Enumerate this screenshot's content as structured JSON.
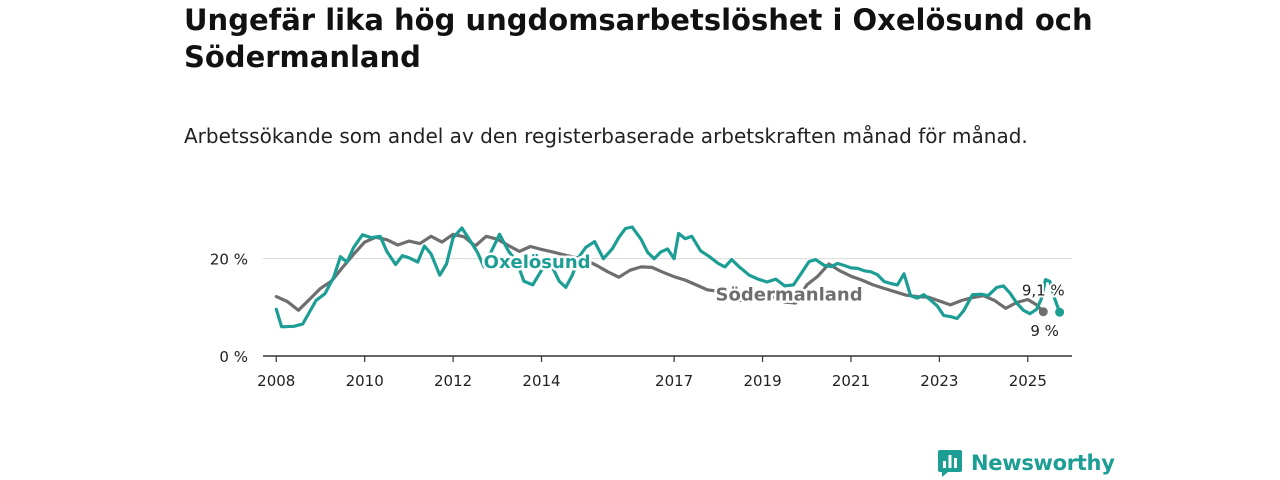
{
  "header": {
    "title": "Ungefär lika hög ungdomsarbetslöshet i Oxelösund och Södermanland",
    "subtitle": "Arbetssökande som andel av den registerbaserade arbetskraften månad för månad."
  },
  "brand": {
    "name": "Newsworthy",
    "icon": "bar-chart-logo-icon",
    "color": "#1d9e95"
  },
  "chart_data": {
    "type": "line",
    "title": "Ungefär lika hög ungdomsarbetslöshet i Oxelösund och Södermanland",
    "subtitle": "Arbetssökande som andel av den registerbaserade arbetskraften månad för månad.",
    "xlabel": "",
    "ylabel": "",
    "xlim": [
      2007.7,
      2026.0
    ],
    "ylim": [
      0,
      30
    ],
    "grid": "horizontal",
    "y_ticks": [
      {
        "value": 0,
        "label": "0 %"
      },
      {
        "value": 20,
        "label": "20 %"
      }
    ],
    "x_ticks": [
      {
        "value": 2008,
        "label": "2008"
      },
      {
        "value": 2010,
        "label": "2010"
      },
      {
        "value": 2012,
        "label": "2012"
      },
      {
        "value": 2014,
        "label": "2014"
      },
      {
        "value": 2017,
        "label": "2017"
      },
      {
        "value": 2019,
        "label": "2019"
      },
      {
        "value": 2021,
        "label": "2021"
      },
      {
        "value": 2023,
        "label": "2023"
      },
      {
        "value": 2025,
        "label": "2025"
      }
    ],
    "series": [
      {
        "name": "Södermanland",
        "color": "#6e6e70",
        "end_label": "9,1 %",
        "points": [
          [
            2008.0,
            12.2
          ],
          [
            2008.25,
            11.2
          ],
          [
            2008.5,
            9.4
          ],
          [
            2008.75,
            11.6
          ],
          [
            2009.0,
            13.9
          ],
          [
            2009.25,
            15.4
          ],
          [
            2009.5,
            18.2
          ],
          [
            2009.75,
            20.9
          ],
          [
            2010.0,
            23.4
          ],
          [
            2010.25,
            24.4
          ],
          [
            2010.5,
            23.9
          ],
          [
            2010.75,
            22.8
          ],
          [
            2011.0,
            23.6
          ],
          [
            2011.25,
            23.1
          ],
          [
            2011.5,
            24.6
          ],
          [
            2011.75,
            23.4
          ],
          [
            2012.0,
            25.0
          ],
          [
            2012.25,
            24.5
          ],
          [
            2012.5,
            22.6
          ],
          [
            2012.75,
            24.6
          ],
          [
            2013.0,
            24.0
          ],
          [
            2013.25,
            22.7
          ],
          [
            2013.5,
            21.5
          ],
          [
            2013.75,
            22.5
          ],
          [
            2014.0,
            21.9
          ],
          [
            2014.25,
            21.4
          ],
          [
            2014.5,
            20.8
          ],
          [
            2014.75,
            20.3
          ],
          [
            2015.0,
            19.7
          ],
          [
            2015.25,
            18.6
          ],
          [
            2015.5,
            17.3
          ],
          [
            2015.75,
            16.2
          ],
          [
            2016.0,
            17.6
          ],
          [
            2016.25,
            18.3
          ],
          [
            2016.5,
            18.2
          ],
          [
            2016.75,
            17.2
          ],
          [
            2017.0,
            16.3
          ],
          [
            2017.25,
            15.6
          ],
          [
            2017.5,
            14.6
          ],
          [
            2017.75,
            13.6
          ],
          [
            2018.0,
            13.3
          ],
          [
            2018.25,
            12.9
          ],
          [
            2018.5,
            11.4
          ],
          [
            2018.75,
            12.3
          ],
          [
            2019.0,
            11.9
          ],
          [
            2019.25,
            12.1
          ],
          [
            2019.5,
            11.1
          ],
          [
            2019.75,
            10.9
          ],
          [
            2020.0,
            14.6
          ],
          [
            2020.25,
            16.4
          ],
          [
            2020.5,
            18.9
          ],
          [
            2020.75,
            17.5
          ],
          [
            2021.0,
            16.4
          ],
          [
            2021.25,
            15.6
          ],
          [
            2021.5,
            14.6
          ],
          [
            2021.75,
            13.9
          ],
          [
            2022.0,
            13.2
          ],
          [
            2022.25,
            12.5
          ],
          [
            2022.5,
            12.2
          ],
          [
            2022.75,
            12.1
          ],
          [
            2023.0,
            11.3
          ],
          [
            2023.25,
            10.5
          ],
          [
            2023.5,
            11.4
          ],
          [
            2023.75,
            12.0
          ],
          [
            2024.0,
            12.4
          ],
          [
            2024.25,
            11.4
          ],
          [
            2024.5,
            9.8
          ],
          [
            2024.75,
            11.0
          ],
          [
            2025.0,
            11.6
          ],
          [
            2025.2,
            10.5
          ],
          [
            2025.35,
            9.1
          ]
        ]
      },
      {
        "name": "Oxelösund",
        "color": "#1d9e95",
        "end_label": "9 %",
        "points": [
          [
            2008.0,
            9.6
          ],
          [
            2008.12,
            6.0
          ],
          [
            2008.4,
            6.1
          ],
          [
            2008.6,
            6.6
          ],
          [
            2008.9,
            11.4
          ],
          [
            2009.1,
            12.8
          ],
          [
            2009.3,
            16.2
          ],
          [
            2009.45,
            20.4
          ],
          [
            2009.6,
            19.3
          ],
          [
            2009.75,
            22.3
          ],
          [
            2009.95,
            24.9
          ],
          [
            2010.15,
            24.3
          ],
          [
            2010.35,
            24.6
          ],
          [
            2010.5,
            21.5
          ],
          [
            2010.7,
            18.8
          ],
          [
            2010.85,
            20.6
          ],
          [
            2011.0,
            20.2
          ],
          [
            2011.2,
            19.3
          ],
          [
            2011.35,
            22.6
          ],
          [
            2011.5,
            21.0
          ],
          [
            2011.7,
            16.6
          ],
          [
            2011.85,
            18.9
          ],
          [
            2012.0,
            24.3
          ],
          [
            2012.2,
            26.3
          ],
          [
            2012.35,
            24.2
          ],
          [
            2012.55,
            21.3
          ],
          [
            2012.7,
            18.3
          ],
          [
            2012.85,
            21.2
          ],
          [
            2013.05,
            25.0
          ],
          [
            2013.25,
            21.6
          ],
          [
            2013.45,
            19.2
          ],
          [
            2013.6,
            15.4
          ],
          [
            2013.8,
            14.6
          ],
          [
            2014.0,
            17.6
          ],
          [
            2014.2,
            19.1
          ],
          [
            2014.4,
            15.4
          ],
          [
            2014.55,
            14.1
          ],
          [
            2014.7,
            16.7
          ],
          [
            2014.85,
            20.4
          ],
          [
            2015.0,
            22.3
          ],
          [
            2015.2,
            23.5
          ],
          [
            2015.4,
            20.0
          ],
          [
            2015.6,
            22.0
          ],
          [
            2015.75,
            24.4
          ],
          [
            2015.9,
            26.2
          ],
          [
            2016.05,
            26.5
          ],
          [
            2016.25,
            24.0
          ],
          [
            2016.4,
            21.3
          ],
          [
            2016.55,
            20.0
          ],
          [
            2016.7,
            21.4
          ],
          [
            2016.85,
            22.0
          ],
          [
            2017.0,
            20.0
          ],
          [
            2017.1,
            25.2
          ],
          [
            2017.25,
            24.1
          ],
          [
            2017.4,
            24.6
          ],
          [
            2017.6,
            21.6
          ],
          [
            2017.8,
            20.4
          ],
          [
            2018.0,
            19.0
          ],
          [
            2018.15,
            18.3
          ],
          [
            2018.3,
            19.8
          ],
          [
            2018.5,
            18.1
          ],
          [
            2018.7,
            16.6
          ],
          [
            2018.9,
            15.8
          ],
          [
            2019.1,
            15.2
          ],
          [
            2019.3,
            15.8
          ],
          [
            2019.5,
            14.4
          ],
          [
            2019.7,
            14.6
          ],
          [
            2019.9,
            17.3
          ],
          [
            2020.05,
            19.4
          ],
          [
            2020.2,
            19.8
          ],
          [
            2020.4,
            18.6
          ],
          [
            2020.55,
            18.4
          ],
          [
            2020.7,
            19.0
          ],
          [
            2020.85,
            18.6
          ],
          [
            2021.0,
            18.1
          ],
          [
            2021.15,
            18.0
          ],
          [
            2021.3,
            17.5
          ],
          [
            2021.45,
            17.3
          ],
          [
            2021.6,
            16.7
          ],
          [
            2021.75,
            15.3
          ],
          [
            2021.9,
            14.9
          ],
          [
            2022.05,
            14.6
          ],
          [
            2022.2,
            16.9
          ],
          [
            2022.35,
            12.4
          ],
          [
            2022.5,
            11.9
          ],
          [
            2022.65,
            12.6
          ],
          [
            2022.8,
            11.5
          ],
          [
            2022.95,
            10.3
          ],
          [
            2023.1,
            8.3
          ],
          [
            2023.25,
            8.1
          ],
          [
            2023.4,
            7.7
          ],
          [
            2023.55,
            9.3
          ],
          [
            2023.75,
            12.6
          ],
          [
            2023.95,
            12.7
          ],
          [
            2024.1,
            12.4
          ],
          [
            2024.3,
            14.1
          ],
          [
            2024.45,
            14.4
          ],
          [
            2024.6,
            12.9
          ],
          [
            2024.75,
            10.9
          ],
          [
            2024.9,
            9.4
          ],
          [
            2025.05,
            8.7
          ],
          [
            2025.2,
            9.6
          ],
          [
            2025.3,
            11.6
          ],
          [
            2025.4,
            15.7
          ],
          [
            2025.5,
            15.3
          ],
          [
            2025.6,
            12.0
          ],
          [
            2025.72,
            9.0
          ]
        ]
      }
    ],
    "annotations": [
      {
        "text": "Oxelösund",
        "series": "Oxelösund",
        "x": 2013.9,
        "y": 18.1,
        "anchor": "middle"
      },
      {
        "text": "Södermanland",
        "series": "Södermanland",
        "x": 2019.6,
        "y": 11.4,
        "anchor": "middle"
      }
    ]
  }
}
